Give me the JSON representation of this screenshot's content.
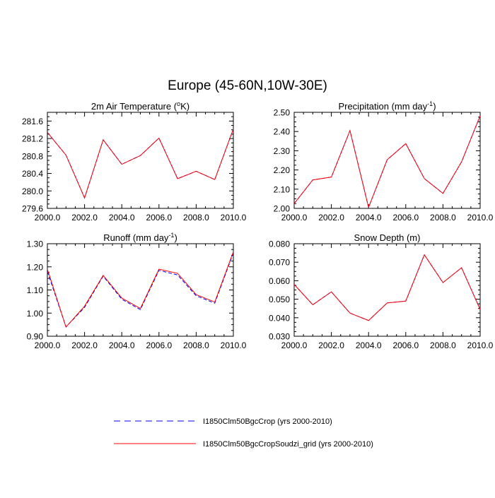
{
  "figure": {
    "title": "Europe (45-60N,10W-30E)"
  },
  "chart_data": [
    {
      "type": "line",
      "title_base": "2m Air Temperature (",
      "title_sup": "o",
      "title_tail": "K)",
      "x": [
        2000,
        2001,
        2002,
        2003,
        2004,
        2005,
        2006,
        2007,
        2008,
        2009,
        2010
      ],
      "xlim": [
        2000,
        2010
      ],
      "ylim": [
        279.6,
        281.8
      ],
      "xticks": [
        "2000.0",
        "2002.0",
        "2004.0",
        "2006.0",
        "2008.0",
        "2010.0"
      ],
      "yticks": [
        "279.6",
        "280.0",
        "280.4",
        "280.8",
        "281.2",
        "281.6"
      ],
      "series": [
        {
          "name": "I1850Clm50BgcCrop (yrs 2000-2010)",
          "color": "#0000ff",
          "dash": "dashed",
          "values": [
            281.34,
            280.82,
            279.84,
            281.17,
            280.61,
            280.81,
            281.21,
            280.28,
            280.45,
            280.26,
            281.42
          ]
        },
        {
          "name": "I1850Clm50BgcCropSoudzi_grid (yrs 2000-2010)",
          "color": "#ff0000",
          "dash": "solid",
          "values": [
            281.34,
            280.82,
            279.84,
            281.17,
            280.61,
            280.81,
            281.21,
            280.28,
            280.45,
            280.26,
            281.42
          ]
        }
      ]
    },
    {
      "type": "line",
      "title_base": "Precipitation (mm day",
      "title_sup": "-1",
      "title_tail": ")",
      "x": [
        2000,
        2001,
        2002,
        2003,
        2004,
        2005,
        2006,
        2007,
        2008,
        2009,
        2010
      ],
      "xlim": [
        2000,
        2010
      ],
      "ylim": [
        2.0,
        2.5
      ],
      "xticks": [
        "2000.0",
        "2002.0",
        "2004.0",
        "2006.0",
        "2008.0",
        "2010.0"
      ],
      "yticks": [
        "2.00",
        "2.10",
        "2.20",
        "2.30",
        "2.40",
        "2.50"
      ],
      "series": [
        {
          "name": "I1850Clm50BgcCrop (yrs 2000-2010)",
          "color": "#0000ff",
          "dash": "dashed",
          "values": [
            2.025,
            2.148,
            2.163,
            2.405,
            2.005,
            2.253,
            2.337,
            2.155,
            2.078,
            2.242,
            2.482
          ]
        },
        {
          "name": "I1850Clm50BgcCropSoudzi_grid (yrs 2000-2010)",
          "color": "#ff0000",
          "dash": "solid",
          "values": [
            2.025,
            2.148,
            2.163,
            2.405,
            2.005,
            2.253,
            2.337,
            2.155,
            2.078,
            2.242,
            2.482
          ]
        }
      ]
    },
    {
      "type": "line",
      "title_base": "Runoff (mm day",
      "title_sup": "-1",
      "title_tail": ")",
      "x": [
        2000,
        2001,
        2002,
        2003,
        2004,
        2005,
        2006,
        2007,
        2008,
        2009,
        2010
      ],
      "xlim": [
        2000,
        2010
      ],
      "ylim": [
        0.9,
        1.3
      ],
      "xticks": [
        "2000.0",
        "2002.0",
        "2004.0",
        "2006.0",
        "2008.0",
        "2010.0"
      ],
      "yticks": [
        "0.90",
        "1.00",
        "1.10",
        "1.20",
        "1.30"
      ],
      "series": [
        {
          "name": "I1850Clm50BgcCrop (yrs 2000-2010)",
          "color": "#0000ff",
          "dash": "dashed",
          "values": [
            1.18,
            0.94,
            1.025,
            1.16,
            1.06,
            1.015,
            1.185,
            1.165,
            1.075,
            1.043,
            1.26
          ]
        },
        {
          "name": "I1850Clm50BgcCropSoudzi_grid (yrs 2000-2010)",
          "color": "#ff0000",
          "dash": "solid",
          "values": [
            1.19,
            0.94,
            1.03,
            1.163,
            1.065,
            1.02,
            1.19,
            1.172,
            1.08,
            1.048,
            1.265
          ]
        }
      ]
    },
    {
      "type": "line",
      "title_base": "Snow Depth (m)",
      "title_sup": "",
      "title_tail": "",
      "x": [
        2000,
        2001,
        2002,
        2003,
        2004,
        2005,
        2006,
        2007,
        2008,
        2009,
        2010
      ],
      "xlim": [
        2000,
        2010
      ],
      "ylim": [
        0.03,
        0.08
      ],
      "xticks": [
        "2000.0",
        "2002.0",
        "2004.0",
        "2006.0",
        "2008.0",
        "2010.0"
      ],
      "yticks": [
        "0.030",
        "0.040",
        "0.050",
        "0.060",
        "0.070",
        "0.080"
      ],
      "series": [
        {
          "name": "I1850Clm50BgcCrop (yrs 2000-2010)",
          "color": "#0000ff",
          "dash": "dashed",
          "values": [
            0.058,
            0.047,
            0.054,
            0.0425,
            0.0385,
            0.048,
            0.049,
            0.074,
            0.059,
            0.067,
            0.0445
          ]
        },
        {
          "name": "I1850Clm50BgcCropSoudzi_grid (yrs 2000-2010)",
          "color": "#ff0000",
          "dash": "solid",
          "values": [
            0.058,
            0.047,
            0.054,
            0.0425,
            0.0385,
            0.048,
            0.049,
            0.074,
            0.059,
            0.067,
            0.0445
          ]
        }
      ]
    }
  ],
  "legend": {
    "entries": [
      {
        "label": "I1850Clm50BgcCrop (yrs 2000-2010)",
        "color": "#0000ff",
        "dash": "dashed"
      },
      {
        "label": "I1850Clm50BgcCropSoudzi_grid (yrs 2000-2010)",
        "color": "#ff0000",
        "dash": "solid"
      }
    ]
  }
}
